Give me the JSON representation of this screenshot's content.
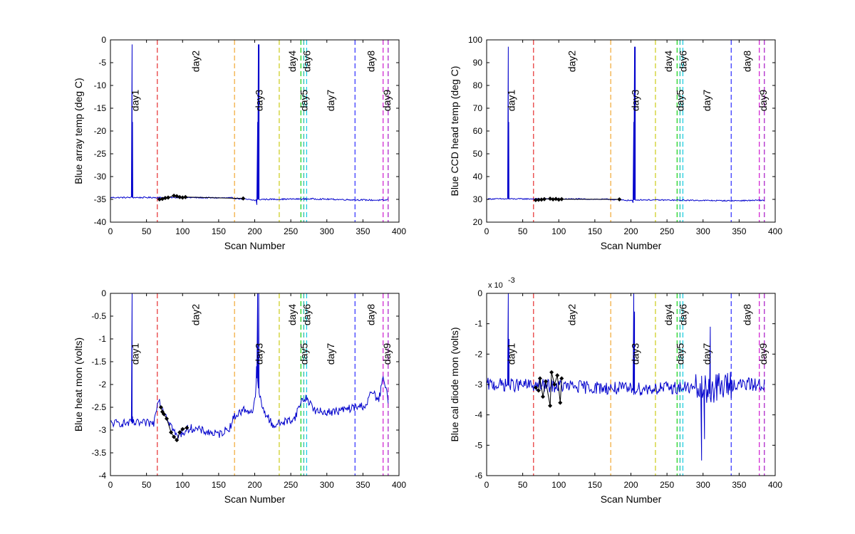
{
  "chart_data": [
    {
      "type": "line",
      "panel": "top-left",
      "xlabel": "Scan Number",
      "ylabel": "Blue array temp (deg C)",
      "xlim": [
        0,
        400
      ],
      "ylim": [
        -40,
        0
      ],
      "xticks": [
        "0",
        "50",
        "100",
        "150",
        "200",
        "250",
        "300",
        "350",
        "400"
      ],
      "yticks": [
        "-40",
        "-35",
        "-30",
        "-25",
        "-20",
        "-15",
        "-10",
        "-5",
        "0"
      ],
      "series": [
        {
          "color": "#0000cc",
          "style": "solid",
          "base": -34.7,
          "noise": 0.15,
          "drift": [
            [
              0,
              -34.6
            ],
            [
              100,
              -34.6
            ],
            [
              170,
              -34.7
            ],
            [
              200,
              -35.2
            ],
            [
              210,
              -35.0
            ],
            [
              280,
              -34.9
            ],
            [
              340,
              -35.1
            ],
            [
              380,
              -35.2
            ],
            [
              385,
              -35.0
            ]
          ],
          "spikes": [
            {
              "x": 30,
              "y": -1
            },
            {
              "x": 30.6,
              "y": -18
            },
            {
              "x": 205,
              "y": -1
            },
            {
              "x": 206,
              "y": -1
            },
            {
              "x": 204,
              "y": -18
            },
            {
              "x": 203,
              "y": -36.2
            }
          ]
        },
        {
          "color": "#000000",
          "style": "markers",
          "points": [
            [
              68,
              -35.0
            ],
            [
              72,
              -34.9
            ],
            [
              76,
              -34.7
            ],
            [
              80,
              -34.6
            ],
            [
              88,
              -34.2
            ],
            [
              92,
              -34.3
            ],
            [
              96,
              -34.5
            ],
            [
              100,
              -34.6
            ],
            [
              104,
              -34.5
            ],
            [
              184,
              -34.8
            ]
          ]
        }
      ],
      "day_lines": [
        {
          "x": 65,
          "label": "day1",
          "color": "#e41a1c",
          "label_x": 34,
          "label_row": "low"
        },
        {
          "x": 172,
          "label": "day2",
          "color": "#f0a020",
          "label_x": 118,
          "label_row": "high"
        },
        {
          "x": 234,
          "label": "day3",
          "color": "#c8c800",
          "label_x": 206,
          "label_row": "low"
        },
        {
          "x": 264,
          "label": "day4",
          "color": "#00cc00",
          "label_x": 252,
          "label_row": "high"
        },
        {
          "x": 268,
          "label": "day5",
          "color": "#00b4a0",
          "label_x": 268,
          "label_row": "low"
        },
        {
          "x": 272,
          "label": "day6",
          "color": "#00c8e0",
          "label_x": 272,
          "label_row": "high"
        },
        {
          "x": 339,
          "label": "day7",
          "color": "#1a1aff",
          "label_x": 305,
          "label_row": "low"
        },
        {
          "x": 378,
          "label": "day8",
          "color": "#cc00cc",
          "label_x": 361,
          "label_row": "high"
        },
        {
          "x": 385,
          "label": "day9",
          "color": "#a000c0",
          "label_x": 383,
          "label_row": "low"
        }
      ]
    },
    {
      "type": "line",
      "panel": "top-right",
      "xlabel": "Scan Number",
      "ylabel": "Blue CCD head temp (deg C)",
      "xlim": [
        0,
        400
      ],
      "ylim": [
        20,
        100
      ],
      "xticks": [
        "0",
        "50",
        "100",
        "150",
        "200",
        "250",
        "300",
        "350",
        "400"
      ],
      "yticks": [
        "20",
        "30",
        "40",
        "50",
        "60",
        "70",
        "80",
        "90",
        "100"
      ],
      "series": [
        {
          "color": "#0000cc",
          "style": "solid",
          "base": 30,
          "noise": 0.25,
          "drift": [
            [
              0,
              30.2
            ],
            [
              100,
              30.2
            ],
            [
              170,
              30.0
            ],
            [
              200,
              29.5
            ],
            [
              210,
              29.8
            ],
            [
              280,
              29.6
            ],
            [
              340,
              29.4
            ],
            [
              385,
              29.6
            ]
          ],
          "spikes": [
            {
              "x": 30,
              "y": 97
            },
            {
              "x": 30.6,
              "y": 64
            },
            {
              "x": 205,
              "y": 97
            },
            {
              "x": 206,
              "y": 97
            },
            {
              "x": 204,
              "y": 64
            },
            {
              "x": 203,
              "y": 28.5
            }
          ]
        },
        {
          "color": "#000000",
          "style": "markers",
          "points": [
            [
              68,
              29.7
            ],
            [
              72,
              29.8
            ],
            [
              76,
              29.9
            ],
            [
              80,
              30.1
            ],
            [
              88,
              30.3
            ],
            [
              92,
              30.0
            ],
            [
              96,
              30.2
            ],
            [
              100,
              29.9
            ],
            [
              104,
              30.1
            ],
            [
              184,
              30.0
            ]
          ]
        }
      ],
      "day_lines": [
        {
          "x": 65,
          "label": "day1",
          "color": "#e41a1c",
          "label_x": 34,
          "label_row": "low"
        },
        {
          "x": 172,
          "label": "day2",
          "color": "#f0a020",
          "label_x": 118,
          "label_row": "high"
        },
        {
          "x": 234,
          "label": "day3",
          "color": "#c8c800",
          "label_x": 206,
          "label_row": "low"
        },
        {
          "x": 264,
          "label": "day4",
          "color": "#00cc00",
          "label_x": 252,
          "label_row": "high"
        },
        {
          "x": 268,
          "label": "day5",
          "color": "#00b4a0",
          "label_x": 268,
          "label_row": "low"
        },
        {
          "x": 272,
          "label": "day6",
          "color": "#00c8e0",
          "label_x": 272,
          "label_row": "high"
        },
        {
          "x": 339,
          "label": "day7",
          "color": "#1a1aff",
          "label_x": 305,
          "label_row": "low"
        },
        {
          "x": 378,
          "label": "day8",
          "color": "#cc00cc",
          "label_x": 361,
          "label_row": "high"
        },
        {
          "x": 385,
          "label": "day9",
          "color": "#a000c0",
          "label_x": 383,
          "label_row": "low"
        }
      ]
    },
    {
      "type": "line",
      "panel": "bottom-left",
      "xlabel": "Scan Number",
      "ylabel": "Blue heat mon (volts)",
      "xlim": [
        0,
        400
      ],
      "ylim": [
        -4,
        0
      ],
      "xticks": [
        "0",
        "50",
        "100",
        "150",
        "200",
        "250",
        "300",
        "350",
        "400"
      ],
      "yticks": [
        "-4",
        "-3.5",
        "-3",
        "-2.5",
        "-2",
        "-1.5",
        "-1",
        "-0.5",
        "0"
      ],
      "series": [
        {
          "color": "#0000cc",
          "style": "solid",
          "noise": 0.09,
          "drift": [
            [
              0,
              -2.85
            ],
            [
              30,
              -2.85
            ],
            [
              60,
              -2.85
            ],
            [
              66,
              -2.3
            ],
            [
              75,
              -2.6
            ],
            [
              92,
              -3.15
            ],
            [
              110,
              -2.95
            ],
            [
              150,
              -3.1
            ],
            [
              165,
              -2.95
            ],
            [
              172,
              -2.7
            ],
            [
              185,
              -2.55
            ],
            [
              198,
              -2.6
            ],
            [
              203,
              -1.9
            ],
            [
              210,
              -2.5
            ],
            [
              225,
              -2.9
            ],
            [
              255,
              -2.75
            ],
            [
              265,
              -2.35
            ],
            [
              272,
              -2.3
            ],
            [
              285,
              -2.6
            ],
            [
              310,
              -2.6
            ],
            [
              340,
              -2.5
            ],
            [
              355,
              -2.45
            ],
            [
              362,
              -2.15
            ],
            [
              372,
              -2.35
            ],
            [
              378,
              -1.85
            ],
            [
              385,
              -2.35
            ]
          ],
          "spikes": [
            {
              "x": 30,
              "y": 0
            },
            {
              "x": 30.6,
              "y": -2.7
            },
            {
              "x": 204,
              "y": 0
            },
            {
              "x": 205.5,
              "y": 0
            },
            {
              "x": 202.5,
              "y": -1.6
            }
          ]
        },
        {
          "color": "#000000",
          "style": "markers",
          "points": [
            [
              70,
              -2.5
            ],
            [
              72,
              -2.6
            ],
            [
              74,
              -2.65
            ],
            [
              78,
              -2.75
            ],
            [
              84,
              -3.05
            ],
            [
              88,
              -3.15
            ],
            [
              92,
              -3.22
            ],
            [
              96,
              -3.05
            ],
            [
              100,
              -2.98
            ],
            [
              106,
              -2.95
            ]
          ]
        }
      ],
      "day_lines": [
        {
          "x": 65,
          "label": "day1",
          "color": "#e41a1c",
          "label_x": 34,
          "label_row": "low"
        },
        {
          "x": 172,
          "label": "day2",
          "color": "#f0a020",
          "label_x": 118,
          "label_row": "high"
        },
        {
          "x": 234,
          "label": "day3",
          "color": "#c8c800",
          "label_x": 206,
          "label_row": "low"
        },
        {
          "x": 264,
          "label": "day4",
          "color": "#00cc00",
          "label_x": 252,
          "label_row": "high"
        },
        {
          "x": 268,
          "label": "day5",
          "color": "#00b4a0",
          "label_x": 268,
          "label_row": "low"
        },
        {
          "x": 272,
          "label": "day6",
          "color": "#00c8e0",
          "label_x": 272,
          "label_row": "high"
        },
        {
          "x": 339,
          "label": "day7",
          "color": "#1a1aff",
          "label_x": 305,
          "label_row": "low"
        },
        {
          "x": 378,
          "label": "day8",
          "color": "#cc00cc",
          "label_x": 361,
          "label_row": "high"
        },
        {
          "x": 385,
          "label": "day9",
          "color": "#a000c0",
          "label_x": 383,
          "label_row": "low"
        }
      ]
    },
    {
      "type": "line",
      "panel": "bottom-right",
      "xlabel": "Scan Number",
      "ylabel": "Blue cal diode mon (volts)",
      "y_exponent_label": "x 10",
      "y_exponent": "-3",
      "xlim": [
        0,
        400
      ],
      "ylim": [
        -6,
        0
      ],
      "xticks": [
        "0",
        "50",
        "100",
        "150",
        "200",
        "250",
        "300",
        "350",
        "400"
      ],
      "yticks": [
        "-6",
        "-5",
        "-4",
        "-3",
        "-2",
        "-1",
        "0"
      ],
      "series": [
        {
          "color": "#0000cc",
          "style": "solid",
          "noise": 0.22,
          "drift": [
            [
              0,
              -3.0
            ],
            [
              100,
              -3.05
            ],
            [
              200,
              -3.15
            ],
            [
              280,
              -3.1
            ],
            [
              300,
              -3.2
            ],
            [
              340,
              -3.0
            ],
            [
              385,
              -3.0
            ]
          ],
          "noise_boost": [
            [
              290,
              340,
              2.2
            ]
          ],
          "spikes": [
            {
              "x": 30,
              "y": 0
            },
            {
              "x": 31,
              "y": -1.5
            },
            {
              "x": 204,
              "y": 0
            },
            {
              "x": 205,
              "y": -0.6
            },
            {
              "x": 298,
              "y": -5.5
            },
            {
              "x": 310,
              "y": -1.1
            },
            {
              "x": 302,
              "y": -4.8
            }
          ]
        },
        {
          "color": "#000000",
          "style": "markers",
          "points": [
            [
              68,
              -3.1
            ],
            [
              72,
              -3.2
            ],
            [
              74,
              -2.8
            ],
            [
              78,
              -3.4
            ],
            [
              82,
              -2.9
            ],
            [
              88,
              -3.7
            ],
            [
              90,
              -2.6
            ],
            [
              94,
              -3.0
            ],
            [
              98,
              -2.7
            ],
            [
              102,
              -3.6
            ],
            [
              104,
              -2.8
            ]
          ]
        }
      ],
      "day_lines": [
        {
          "x": 65,
          "label": "day1",
          "color": "#e41a1c",
          "label_x": 34,
          "label_row": "low"
        },
        {
          "x": 172,
          "label": "day2",
          "color": "#f0a020",
          "label_x": 118,
          "label_row": "high"
        },
        {
          "x": 234,
          "label": "day3",
          "color": "#c8c800",
          "label_x": 206,
          "label_row": "low"
        },
        {
          "x": 264,
          "label": "day4",
          "color": "#00cc00",
          "label_x": 252,
          "label_row": "high"
        },
        {
          "x": 268,
          "label": "day5",
          "color": "#00b4a0",
          "label_x": 268,
          "label_row": "low"
        },
        {
          "x": 272,
          "label": "day6",
          "color": "#00c8e0",
          "label_x": 272,
          "label_row": "high"
        },
        {
          "x": 339,
          "label": "day7",
          "color": "#1a1aff",
          "label_x": 305,
          "label_row": "low"
        },
        {
          "x": 378,
          "label": "day8",
          "color": "#cc00cc",
          "label_x": 361,
          "label_row": "high"
        },
        {
          "x": 385,
          "label": "day9",
          "color": "#a000c0",
          "label_x": 383,
          "label_row": "low"
        }
      ]
    }
  ]
}
